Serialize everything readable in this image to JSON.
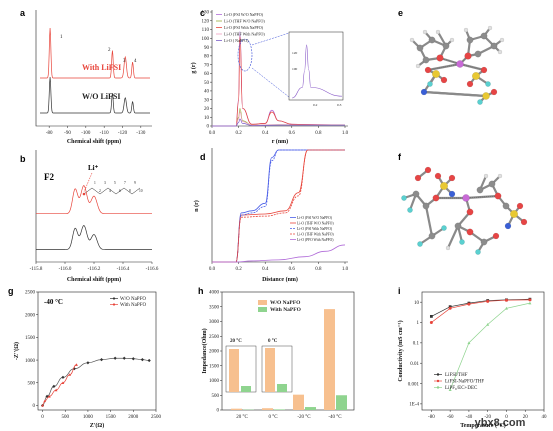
{
  "panels": {
    "a": {
      "label": "a",
      "xlabel": "Chemical shift (ppm)",
      "xticks": [
        "-80",
        "-90",
        "-100",
        "-110",
        "-120",
        "-130"
      ],
      "trace_top": "With LiFSI",
      "trace_bottom": "W/O LiFSI",
      "peaks": [
        "1",
        "2",
        "3",
        "4"
      ]
    },
    "b": {
      "label": "b",
      "xlabel": "Chemical shift (ppm)",
      "xticks": [
        "-115.8",
        "-116.0",
        "-116.2",
        "-116.4",
        "-116.6"
      ],
      "title": "F2",
      "ion": "Li⁺",
      "atom_labels": [
        "1",
        "2",
        "3",
        "4",
        "5",
        "6",
        "7",
        "8",
        "9",
        "10"
      ]
    },
    "c": {
      "label": "c",
      "xlabel": "r (nm)",
      "ylabel": "g (r)",
      "yticks": [
        "0",
        "10",
        "20",
        "30",
        "40",
        "50",
        "60",
        "70",
        "80",
        "90",
        "100",
        "110",
        "120",
        "130"
      ],
      "xticks": [
        "0.0",
        "0.2",
        "0.4",
        "0.6",
        "0.8",
        "1.0"
      ],
      "legend": [
        "Li-O (FSI W/O NaPFO)",
        "Li-O (THF W/O NaPFO)",
        "Li-O (FSI With NaPFO)",
        "Li-O (THF With NaPFO)",
        "Li-O ( NaPFO)"
      ],
      "inset_yticks": [
        "100",
        "120"
      ],
      "inset_xticks": [
        "0.2",
        "0.3"
      ]
    },
    "d": {
      "label": "d",
      "xlabel": "Distance (nm)",
      "ylabel": "n (r)",
      "xticks": [
        "0.0",
        "0.2",
        "0.4",
        "0.6",
        "0.8",
        "1.0"
      ],
      "legend": [
        "Li-O (FSI W/O NaPFO)",
        "Li-O (THF W/O NaPFO)",
        "Li-O (FSI With NaPFO)",
        "Li-O (THF With NaPFO)",
        "Li-O (PFO With NaPFO)"
      ]
    },
    "e": {
      "label": "e"
    },
    "f": {
      "label": "f"
    },
    "g": {
      "label": "g",
      "xlabel": "Z'(Ω)",
      "ylabel": "-Z''(Ω)",
      "temp": "-40 °C",
      "xticks": [
        "0",
        "500",
        "1000",
        "1500",
        "2000",
        "2500"
      ],
      "yticks": [
        "0",
        "500",
        "1000",
        "1500",
        "2000",
        "2500"
      ],
      "legend": [
        "W/O NaPFO",
        "With NaPFO"
      ]
    },
    "h": {
      "label": "h",
      "ylabel": "Impedance(Ohm)",
      "yticks": [
        "0",
        "500",
        "1000",
        "1500",
        "2000",
        "2500",
        "3000",
        "3500",
        "4000"
      ],
      "legend": [
        "W/O NaPFO",
        "With NaPFO"
      ],
      "inset1": "20 °C",
      "inset2": "0 °C",
      "inset_yticks": [
        "0",
        "500",
        "1000",
        "1500",
        "2000"
      ]
    },
    "i": {
      "label": "i",
      "xlabel": "Temperature (°C)",
      "ylabel": "Conductivity (mS cm⁻¹)",
      "yticks": [
        "1E-4",
        "0.001",
        "0.01",
        "0.1",
        "1",
        "10"
      ],
      "xticks": [
        "-80",
        "-60",
        "-40",
        "-20",
        "0",
        "20",
        "40"
      ],
      "legend": [
        "LiFSI/THF",
        "LiFSI-NaPFO/THF",
        "LiPF₆/EC+DEC"
      ]
    }
  },
  "watermark": "ybx8.com",
  "colors": {
    "red": "#e8443a",
    "black": "#333333",
    "orange": "#f7c08f",
    "green": "#8fd48f",
    "blue": "#4a5ee8",
    "purple": "#b06ad8",
    "olive": "#9aae3c"
  },
  "chart_data": [
    {
      "type": "line",
      "title": "",
      "xlabel": "Chemical shift (ppm)",
      "ylabel": "",
      "xlim": [
        -75,
        -135
      ],
      "note": "19F NMR spectra",
      "series": [
        {
          "name": "With LiFSI",
          "peaks_ppm": [
            -80.5,
            -114.5,
            -121.5,
            -125.5
          ]
        },
        {
          "name": "W/O LiFSI",
          "peaks_ppm": [
            -80.5,
            -114.5,
            -121.5,
            -125.5
          ]
        }
      ]
    },
    {
      "type": "line",
      "title": "F2",
      "xlabel": "Chemical shift (ppm)",
      "xlim": [
        -115.8,
        -116.6
      ],
      "series": [
        {
          "name": "With LiFSI",
          "x": [
            -115.8,
            -116.0,
            -116.08,
            -116.14,
            -116.2,
            -116.3,
            -116.6
          ],
          "y": [
            0.08,
            0.12,
            0.32,
            0.35,
            0.22,
            0.1,
            0.08
          ]
        },
        {
          "name": "W/O LiFSI",
          "x": [
            -115.8,
            -116.0,
            -116.08,
            -116.14,
            -116.2,
            -116.3,
            -116.6
          ],
          "y": [
            0.0,
            0.04,
            0.25,
            0.3,
            0.18,
            0.03,
            0.0
          ]
        }
      ]
    },
    {
      "type": "line",
      "xlabel": "r (nm)",
      "ylabel": "g (r)",
      "xlim": [
        0,
        1.0
      ],
      "ylim": [
        0,
        130
      ],
      "series": [
        {
          "name": "Li-O (FSI W/O NaPFO)",
          "x": [
            0,
            0.18,
            0.2,
            0.21,
            0.23,
            0.3,
            0.4,
            0.45,
            0.5,
            0.6,
            0.8,
            1.0
          ],
          "y": [
            0,
            0,
            30,
            108,
            20,
            2,
            3,
            18,
            6,
            2,
            1.5,
            1
          ]
        },
        {
          "name": "Li-O (THF W/O NaPFO)",
          "x": [
            0,
            0.18,
            0.2,
            0.21,
            0.23,
            0.3,
            0.5,
            0.8,
            1.0
          ],
          "y": [
            0,
            0,
            10,
            20,
            6,
            1,
            1.5,
            1,
            1
          ]
        },
        {
          "name": "Li-O (FSI With NaPFO)",
          "x": [
            0,
            0.18,
            0.2,
            0.21,
            0.23,
            0.3,
            0.4,
            0.45,
            0.5,
            0.6,
            0.8,
            1.0
          ],
          "y": [
            0,
            0,
            28,
            102,
            20,
            2,
            3,
            16,
            6,
            2,
            1.5,
            1
          ]
        },
        {
          "name": "Li-O (THF With NaPFO)",
          "x": [
            0,
            0.18,
            0.2,
            0.21,
            0.23,
            0.3,
            0.5,
            0.8,
            1.0
          ],
          "y": [
            0,
            0,
            8,
            16,
            5,
            1,
            1.5,
            1,
            1
          ]
        },
        {
          "name": "Li-O ( NaPFO)",
          "x": [
            0,
            0.18,
            0.2,
            0.21,
            0.23,
            0.3,
            0.5,
            0.8,
            1.0
          ],
          "y": [
            0,
            0,
            4,
            8,
            3,
            0.5,
            1,
            1,
            1
          ]
        }
      ]
    },
    {
      "type": "line",
      "xlabel": "Distance (nm)",
      "ylabel": "n (r)",
      "xlim": [
        0,
        1.0
      ],
      "series": [
        {
          "name": "Li-O (FSI W/O NaPFO)",
          "x": [
            0,
            0.18,
            0.22,
            0.3,
            0.4,
            0.45,
            0.5,
            1.0
          ],
          "y": [
            0,
            0,
            0.46,
            0.48,
            0.55,
            0.98,
            1.05,
            1.05
          ]
        },
        {
          "name": "Li-O (THF W/O NaPFO)",
          "x": [
            0,
            0.18,
            0.22,
            0.4,
            0.55,
            0.65,
            0.72,
            1.0
          ],
          "y": [
            0,
            0,
            0.44,
            0.45,
            0.48,
            0.65,
            1.05,
            1.05
          ]
        },
        {
          "name": "Li-O (FSI With NaPFO)",
          "x": [
            0,
            0.18,
            0.22,
            0.3,
            0.4,
            0.45,
            0.5,
            1.0
          ],
          "y": [
            0,
            0,
            0.44,
            0.46,
            0.52,
            0.95,
            1.05,
            1.05
          ]
        },
        {
          "name": "Li-O (THF With NaPFO)",
          "x": [
            0,
            0.18,
            0.22,
            0.4,
            0.55,
            0.65,
            0.72,
            1.0
          ],
          "y": [
            0,
            0,
            0.42,
            0.43,
            0.46,
            0.62,
            1.05,
            1.05
          ]
        },
        {
          "name": "Li-O (PFO With NaPFO)",
          "x": [
            0,
            0.18,
            0.3,
            0.5,
            0.7,
            0.85,
            1.0
          ],
          "y": [
            0,
            0,
            0.01,
            0.02,
            0.05,
            0.1,
            0.16
          ]
        }
      ]
    },
    {
      "type": "line",
      "title": "-40 °C",
      "xlabel": "Z'(Ω)",
      "ylabel": "-Z''(Ω)",
      "xlim": [
        0,
        2500
      ],
      "ylim": [
        0,
        2500
      ],
      "series": [
        {
          "name": "W/O NaPFO",
          "x": [
            0,
            100,
            250,
            450,
            700,
            1000,
            1300,
            1600,
            1800,
            2000,
            2200,
            2350
          ],
          "y": [
            0,
            200,
            420,
            620,
            810,
            940,
            1010,
            1040,
            1040,
            1030,
            1010,
            990
          ]
        },
        {
          "name": "With NaPFO",
          "x": [
            0,
            50,
            150,
            300,
            450,
            600,
            750
          ],
          "y": [
            0,
            100,
            200,
            340,
            500,
            680,
            900
          ]
        }
      ]
    },
    {
      "type": "bar",
      "ylabel": "Impedance(Ohm)",
      "ylim": [
        0,
        4000
      ],
      "categories": [
        "20 °C",
        "0 °C",
        "-20 °C",
        "-40 °C"
      ],
      "series": [
        {
          "name": "W/O NaPFO",
          "values": [
            45,
            60,
            520,
            3420
          ]
        },
        {
          "name": "With NaPFO",
          "values": [
            12,
            20,
            100,
            500
          ]
        }
      ]
    },
    {
      "type": "line",
      "xlabel": "Temperature (°C)",
      "ylabel": "Conductivity (mS cm⁻¹)",
      "yscale": "log",
      "xlim": [
        -90,
        40
      ],
      "ylim": [
        0.0001,
        20
      ],
      "series": [
        {
          "name": "LiFSI/THF",
          "x": [
            -80,
            -60,
            -40,
            -20,
            0,
            25
          ],
          "y": [
            2,
            6,
            9,
            12,
            13,
            14
          ]
        },
        {
          "name": "LiFSI-NaPFO/THF",
          "x": [
            -80,
            -60,
            -40,
            -20,
            0,
            25
          ],
          "y": [
            1,
            5,
            8,
            11,
            12.5,
            13
          ]
        },
        {
          "name": "LiPF₆/EC+DEC",
          "x": [
            -60,
            -40,
            -20,
            0,
            25
          ],
          "y": [
            0.0005,
            0.1,
            0.8,
            5,
            9
          ]
        }
      ]
    }
  ]
}
